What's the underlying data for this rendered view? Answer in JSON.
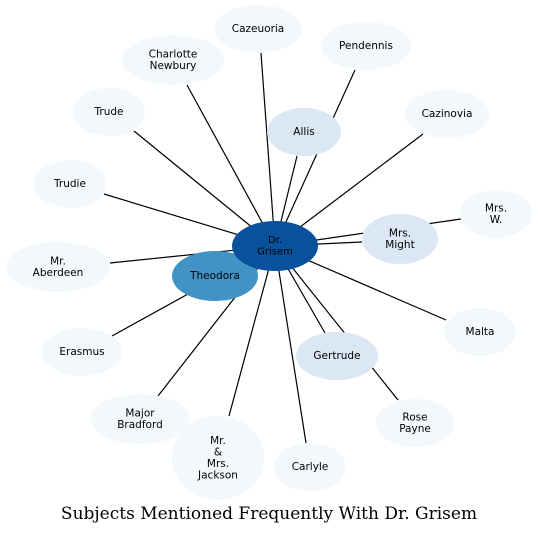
{
  "title": "Subjects Mentioned Frequently With Dr. Grisem",
  "colors": {
    "edge": "#000000",
    "center_fill": "#08519c",
    "strong_fill": "#4292c6",
    "medium_fill": "#dbe7f4",
    "light_fill": "#f3f8fd",
    "text": "#000000"
  },
  "center": {
    "id": "dr-grisem",
    "lines": [
      "Dr.",
      "Grisem"
    ]
  },
  "nodes": [
    {
      "id": "cazeuoria",
      "lines": [
        "Cazeuoria"
      ],
      "level": "light"
    },
    {
      "id": "charlotte-newbury",
      "lines": [
        "Charlotte",
        "Newbury"
      ],
      "level": "light"
    },
    {
      "id": "pendennis",
      "lines": [
        "Pendennis"
      ],
      "level": "light"
    },
    {
      "id": "allis",
      "lines": [
        "Allis"
      ],
      "level": "medium"
    },
    {
      "id": "trude",
      "lines": [
        "Trude"
      ],
      "level": "light"
    },
    {
      "id": "cazinovia",
      "lines": [
        "Cazinovia"
      ],
      "level": "light"
    },
    {
      "id": "trudie",
      "lines": [
        "Trudie"
      ],
      "level": "light"
    },
    {
      "id": "mrs-w",
      "lines": [
        "Mrs.",
        "W."
      ],
      "level": "light"
    },
    {
      "id": "mrs-might",
      "lines": [
        "Mrs.",
        "Might"
      ],
      "level": "medium"
    },
    {
      "id": "mr-aberdeen",
      "lines": [
        "Mr.",
        "Aberdeen"
      ],
      "level": "light"
    },
    {
      "id": "theodora",
      "lines": [
        "Theodora"
      ],
      "level": "strong"
    },
    {
      "id": "malta",
      "lines": [
        "Malta"
      ],
      "level": "light"
    },
    {
      "id": "erasmus",
      "lines": [
        "Erasmus"
      ],
      "level": "light"
    },
    {
      "id": "gertrude",
      "lines": [
        "Gertrude"
      ],
      "level": "medium"
    },
    {
      "id": "major-bradford",
      "lines": [
        "Major",
        "Bradford"
      ],
      "level": "light"
    },
    {
      "id": "rose-payne",
      "lines": [
        "Rose",
        "Payne"
      ],
      "level": "light"
    },
    {
      "id": "mr-mrs-jackson",
      "lines": [
        "Mr.",
        "&",
        "Mrs.",
        "Jackson"
      ],
      "level": "light"
    },
    {
      "id": "carlyle",
      "lines": [
        "Carlyle"
      ],
      "level": "light"
    }
  ]
}
